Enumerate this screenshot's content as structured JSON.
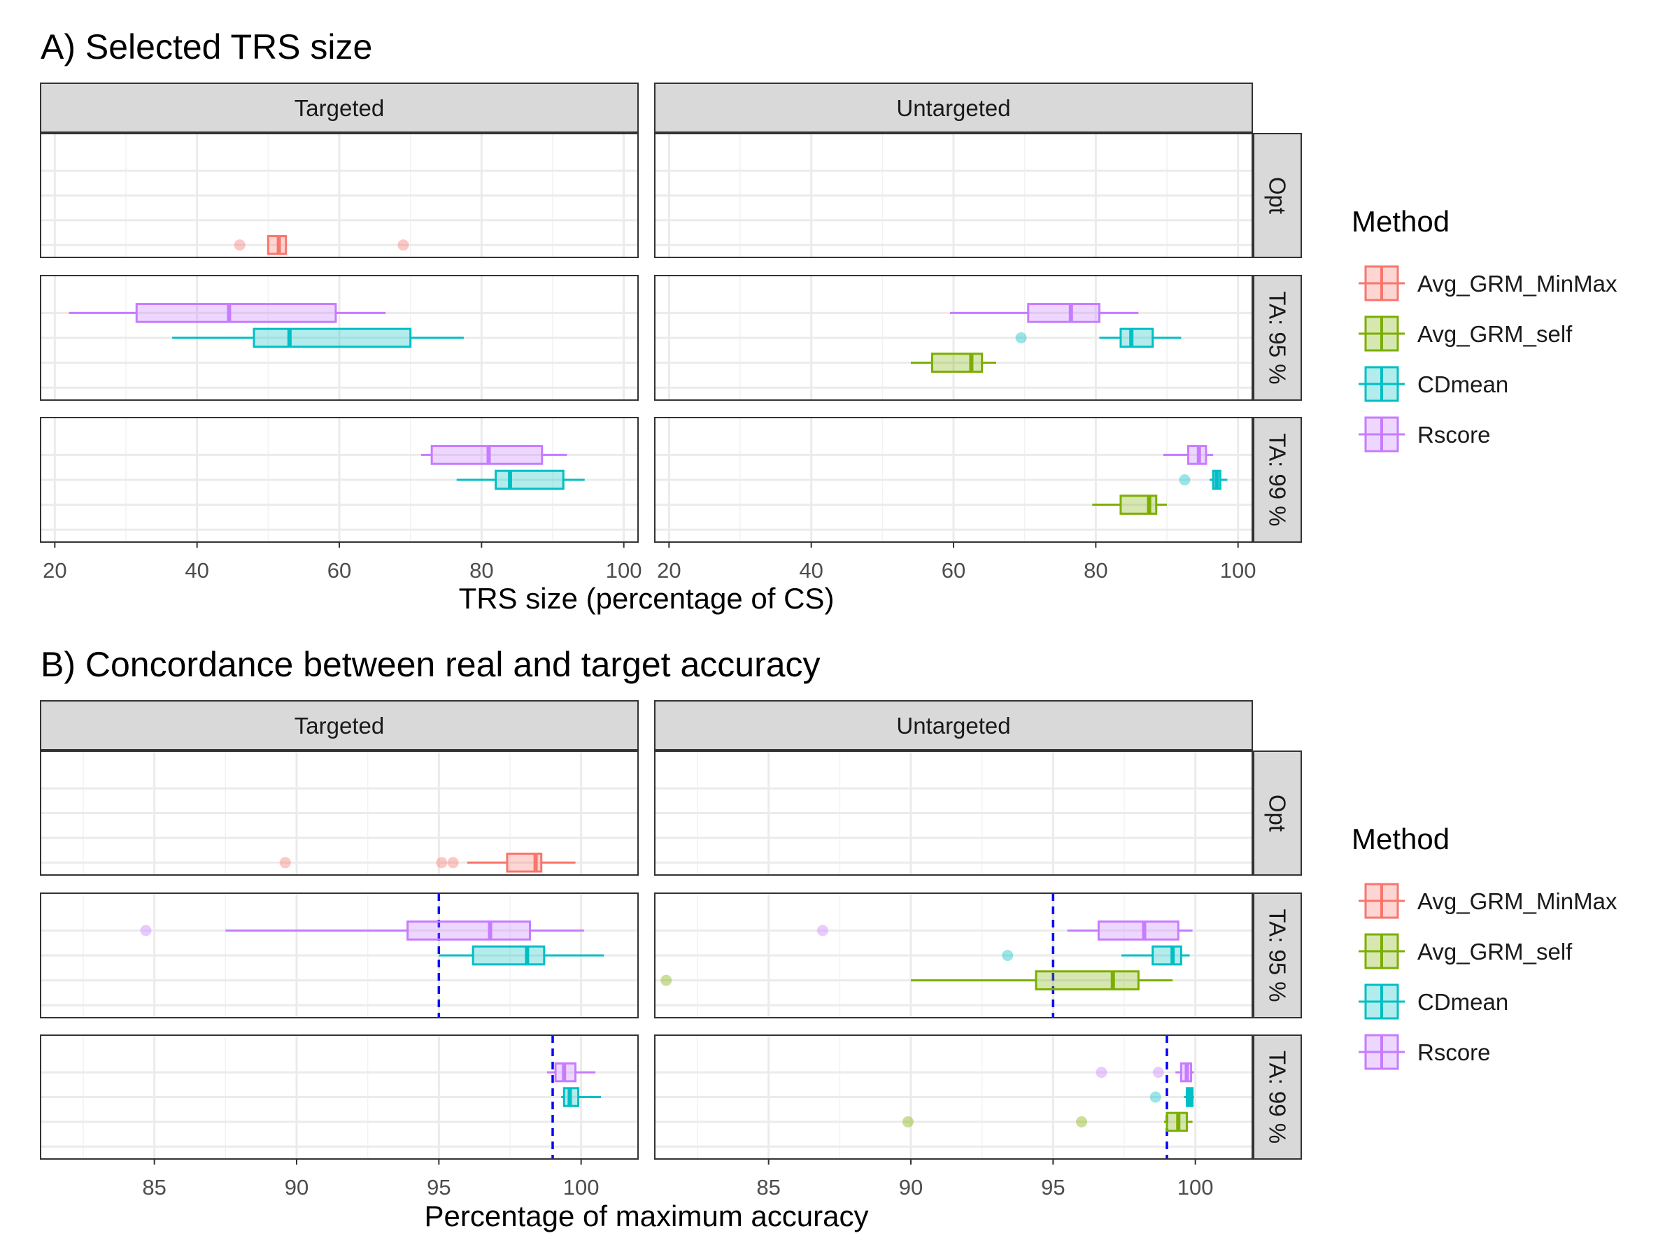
{
  "colors": {
    "Avg_GRM_MinMax": "#F8766D",
    "Avg_GRM_self": "#7CAE00",
    "CDmean": "#00BFC4",
    "Rscore": "#C77CFF",
    "target_line": "#0000FF"
  },
  "legend": {
    "title": "Method",
    "items": [
      "Avg_GRM_MinMax",
      "Avg_GRM_self",
      "CDmean",
      "Rscore"
    ]
  },
  "chart_data": [
    {
      "type": "boxplot",
      "title": "A) Selected TRS size",
      "xlabel": "TRS size (percentage of CS)",
      "xlim": [
        18,
        102
      ],
      "xticks": [
        20,
        40,
        60,
        80,
        100
      ],
      "columns": [
        "Targeted",
        "Untargeted"
      ],
      "rows": [
        "Opt",
        "TA: 95 %",
        "TA: 99 %"
      ],
      "methods_order": [
        "Avg_GRM_MinMax",
        "Avg_GRM_self",
        "CDmean",
        "Rscore"
      ],
      "grid": true,
      "legend_position": "right",
      "series": [
        {
          "column": "Targeted",
          "row": "Opt",
          "method": "Avg_GRM_MinMax",
          "min": 50,
          "q1": 50,
          "median": 51.5,
          "q3": 52.5,
          "max": 52.5,
          "outliers": [
            46,
            69
          ]
        },
        {
          "column": "Targeted",
          "row": "TA: 95 %",
          "method": "CDmean",
          "min": 36.5,
          "q1": 48,
          "median": 53,
          "q3": 70,
          "max": 77.5,
          "outliers": []
        },
        {
          "column": "Targeted",
          "row": "TA: 95 %",
          "method": "Rscore",
          "min": 22,
          "q1": 31.5,
          "median": 44.5,
          "q3": 59.5,
          "max": 66.5,
          "outliers": []
        },
        {
          "column": "Targeted",
          "row": "TA: 99 %",
          "method": "CDmean",
          "min": 76.5,
          "q1": 82,
          "median": 84,
          "q3": 91.5,
          "max": 94.5,
          "outliers": []
        },
        {
          "column": "Targeted",
          "row": "TA: 99 %",
          "method": "Rscore",
          "min": 71.5,
          "q1": 73,
          "median": 81,
          "q3": 88.5,
          "max": 92,
          "outliers": []
        },
        {
          "column": "Untargeted",
          "row": "TA: 95 %",
          "method": "Avg_GRM_self",
          "min": 54,
          "q1": 57,
          "median": 62.5,
          "q3": 64,
          "max": 66,
          "outliers": []
        },
        {
          "column": "Untargeted",
          "row": "TA: 95 %",
          "method": "CDmean",
          "min": 80.5,
          "q1": 83.5,
          "median": 85,
          "q3": 88,
          "max": 92,
          "outliers": [
            69.5
          ]
        },
        {
          "column": "Untargeted",
          "row": "TA: 95 %",
          "method": "Rscore",
          "min": 59.5,
          "q1": 70.5,
          "median": 76.5,
          "q3": 80.5,
          "max": 86,
          "outliers": []
        },
        {
          "column": "Untargeted",
          "row": "TA: 99 %",
          "method": "Avg_GRM_self",
          "min": 79.5,
          "q1": 83.5,
          "median": 87.5,
          "q3": 88.5,
          "max": 90,
          "outliers": []
        },
        {
          "column": "Untargeted",
          "row": "TA: 99 %",
          "method": "CDmean",
          "min": 96,
          "q1": 96.5,
          "median": 97,
          "q3": 97.5,
          "max": 98.5,
          "outliers": [
            92.5
          ]
        },
        {
          "column": "Untargeted",
          "row": "TA: 99 %",
          "method": "Rscore",
          "min": 89.5,
          "q1": 93,
          "median": 94.5,
          "q3": 95.5,
          "max": 96.5,
          "outliers": []
        }
      ],
      "reference_lines": []
    },
    {
      "type": "boxplot",
      "title": "B) Concordance between real and target accuracy",
      "xlabel": "Percentage of maximum accuracy",
      "xlim": [
        81,
        102
      ],
      "xticks": [
        85,
        90,
        95,
        100
      ],
      "columns": [
        "Targeted",
        "Untargeted"
      ],
      "rows": [
        "Opt",
        "TA: 95 %",
        "TA: 99 %"
      ],
      "methods_order": [
        "Avg_GRM_MinMax",
        "Avg_GRM_self",
        "CDmean",
        "Rscore"
      ],
      "grid": true,
      "legend_position": "right",
      "series": [
        {
          "column": "Targeted",
          "row": "Opt",
          "method": "Avg_GRM_MinMax",
          "min": 96,
          "q1": 97.4,
          "median": 98.4,
          "q3": 98.6,
          "max": 99.8,
          "outliers": [
            89.6,
            95.1,
            95.5
          ]
        },
        {
          "column": "Targeted",
          "row": "TA: 95 %",
          "method": "CDmean",
          "min": 95,
          "q1": 96.2,
          "median": 98.1,
          "q3": 98.7,
          "max": 100.8,
          "outliers": []
        },
        {
          "column": "Targeted",
          "row": "TA: 95 %",
          "method": "Rscore",
          "min": 87.5,
          "q1": 93.9,
          "median": 96.8,
          "q3": 98.2,
          "max": 100.1,
          "outliers": [
            84.7
          ]
        },
        {
          "column": "Targeted",
          "row": "TA: 99 %",
          "method": "CDmean",
          "min": 99.3,
          "q1": 99.4,
          "median": 99.6,
          "q3": 99.9,
          "max": 100.7,
          "outliers": []
        },
        {
          "column": "Targeted",
          "row": "TA: 99 %",
          "method": "Rscore",
          "min": 98.8,
          "q1": 99.1,
          "median": 99.4,
          "q3": 99.8,
          "max": 100.5,
          "outliers": []
        },
        {
          "column": "Untargeted",
          "row": "TA: 95 %",
          "method": "Avg_GRM_self",
          "min": 90,
          "q1": 94.4,
          "median": 97.1,
          "q3": 98,
          "max": 99.2,
          "outliers": [
            81.4
          ]
        },
        {
          "column": "Untargeted",
          "row": "TA: 95 %",
          "method": "CDmean",
          "min": 97.4,
          "q1": 98.5,
          "median": 99.2,
          "q3": 99.5,
          "max": 99.8,
          "outliers": [
            93.4
          ]
        },
        {
          "column": "Untargeted",
          "row": "TA: 95 %",
          "method": "Rscore",
          "min": 95.5,
          "q1": 96.6,
          "median": 98.2,
          "q3": 99.4,
          "max": 99.9,
          "outliers": [
            86.9
          ]
        },
        {
          "column": "Untargeted",
          "row": "TA: 99 %",
          "method": "Avg_GRM_self",
          "min": 98.9,
          "q1": 99,
          "median": 99.4,
          "q3": 99.7,
          "max": 99.9,
          "outliers": [
            89.9,
            96
          ]
        },
        {
          "column": "Untargeted",
          "row": "TA: 99 %",
          "method": "CDmean",
          "min": 99.6,
          "q1": 99.7,
          "median": 99.8,
          "q3": 99.9,
          "max": 99.95,
          "outliers": [
            98.6
          ]
        },
        {
          "column": "Untargeted",
          "row": "TA: 99 %",
          "method": "Rscore",
          "min": 99.3,
          "q1": 99.5,
          "median": 99.7,
          "q3": 99.85,
          "max": 99.95,
          "outliers": [
            96.7,
            98.7
          ]
        }
      ],
      "reference_lines": [
        {
          "row": "TA: 95 %",
          "x": 95
        },
        {
          "row": "TA: 99 %",
          "x": 99
        }
      ]
    }
  ]
}
